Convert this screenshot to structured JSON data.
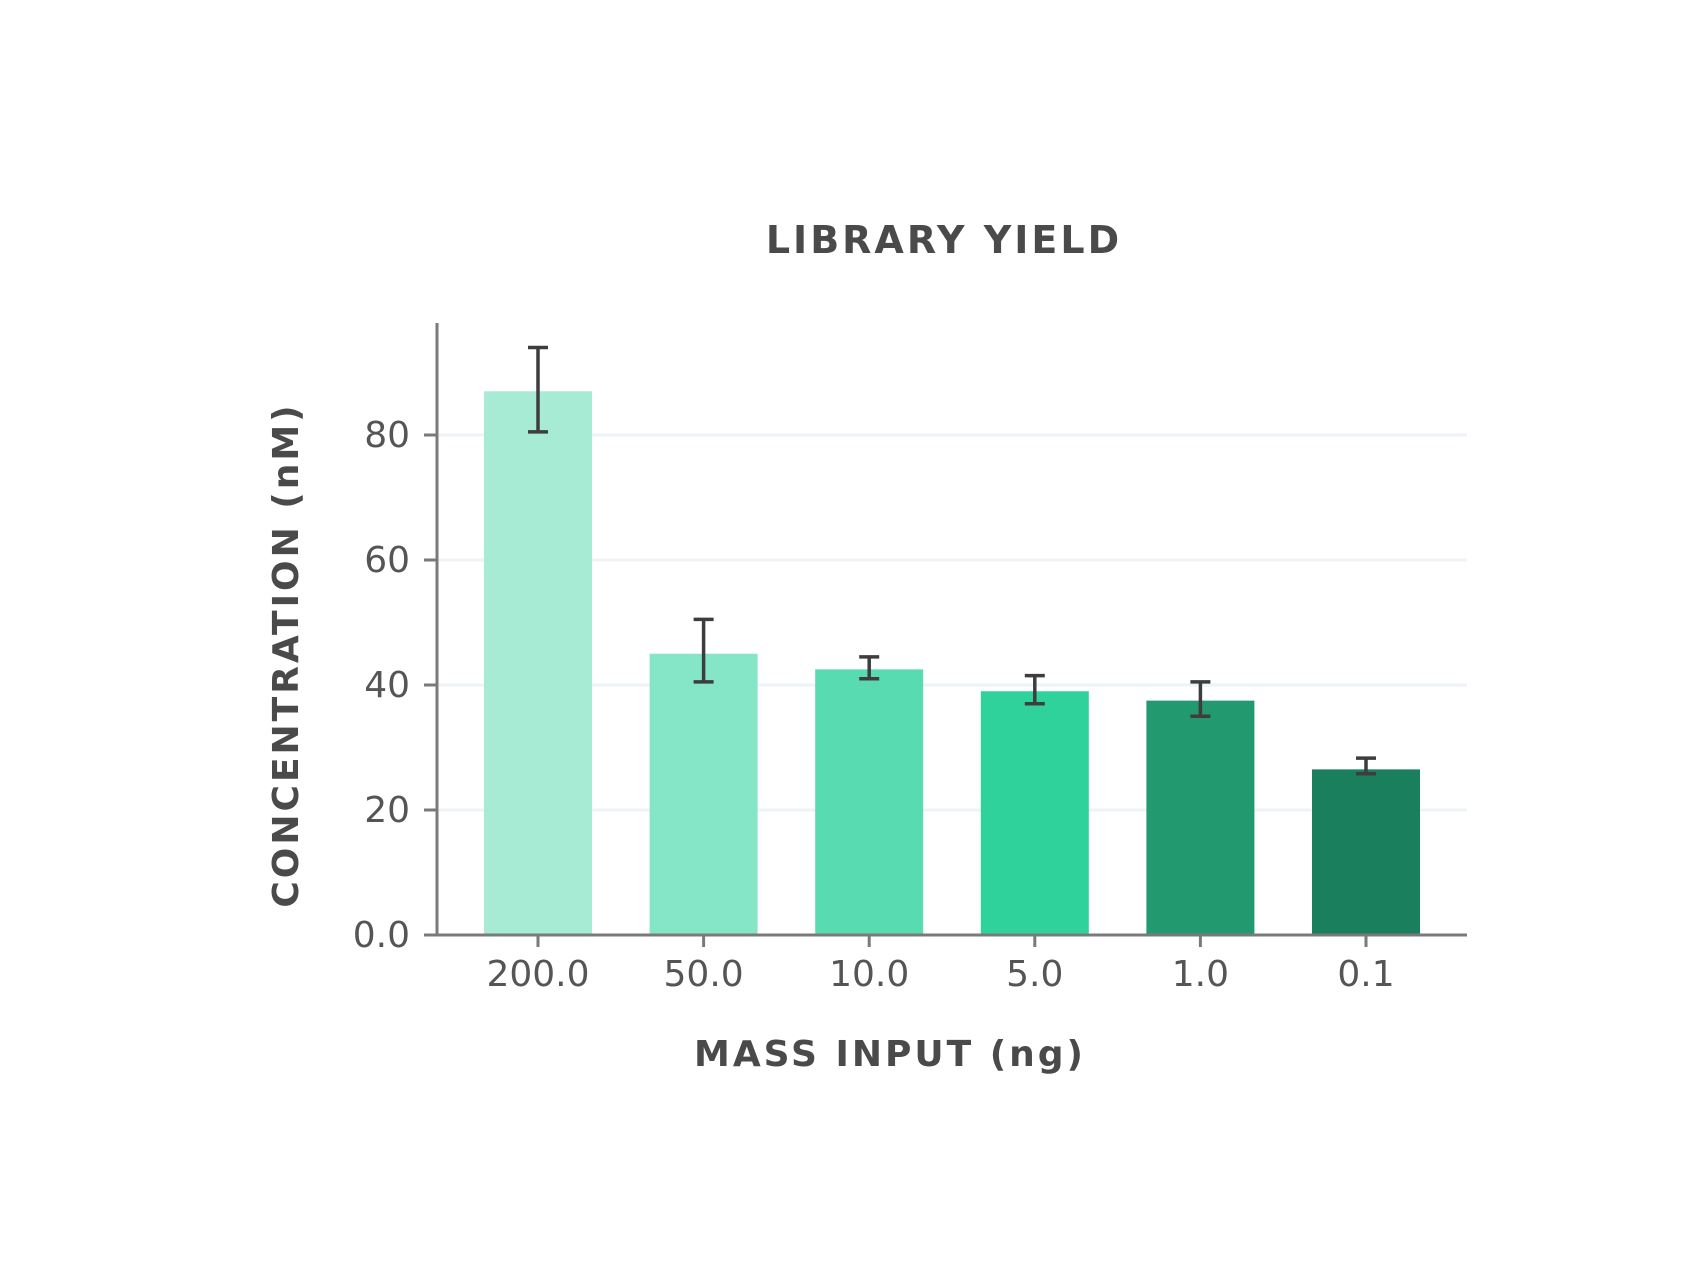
{
  "chart_data": {
    "type": "bar",
    "title": "LIBRARY YIELD",
    "xlabel": "MASS INPUT (ng)",
    "ylabel": "CONCENTRATION (nM)",
    "categories": [
      "200.0",
      "50.0",
      "10.0",
      "5.0",
      "1.0",
      "0.1"
    ],
    "values": [
      87,
      45,
      42.5,
      39,
      37.5,
      26.5
    ],
    "error_low": [
      80.5,
      40.5,
      41,
      37,
      35,
      25.8
    ],
    "error_high": [
      94,
      50.5,
      44.5,
      41.5,
      40.5,
      28.3
    ],
    "colors": [
      "#a8ebd5",
      "#84e6c6",
      "#58dbb0",
      "#2fd29b",
      "#22996e",
      "#1a7f5c"
    ],
    "ylim": [
      0,
      97
    ],
    "yticks": [
      0,
      20,
      40,
      60,
      80
    ],
    "ytick_labels": [
      "0.0",
      "20",
      "40",
      "60",
      "80"
    ],
    "grid": true
  }
}
